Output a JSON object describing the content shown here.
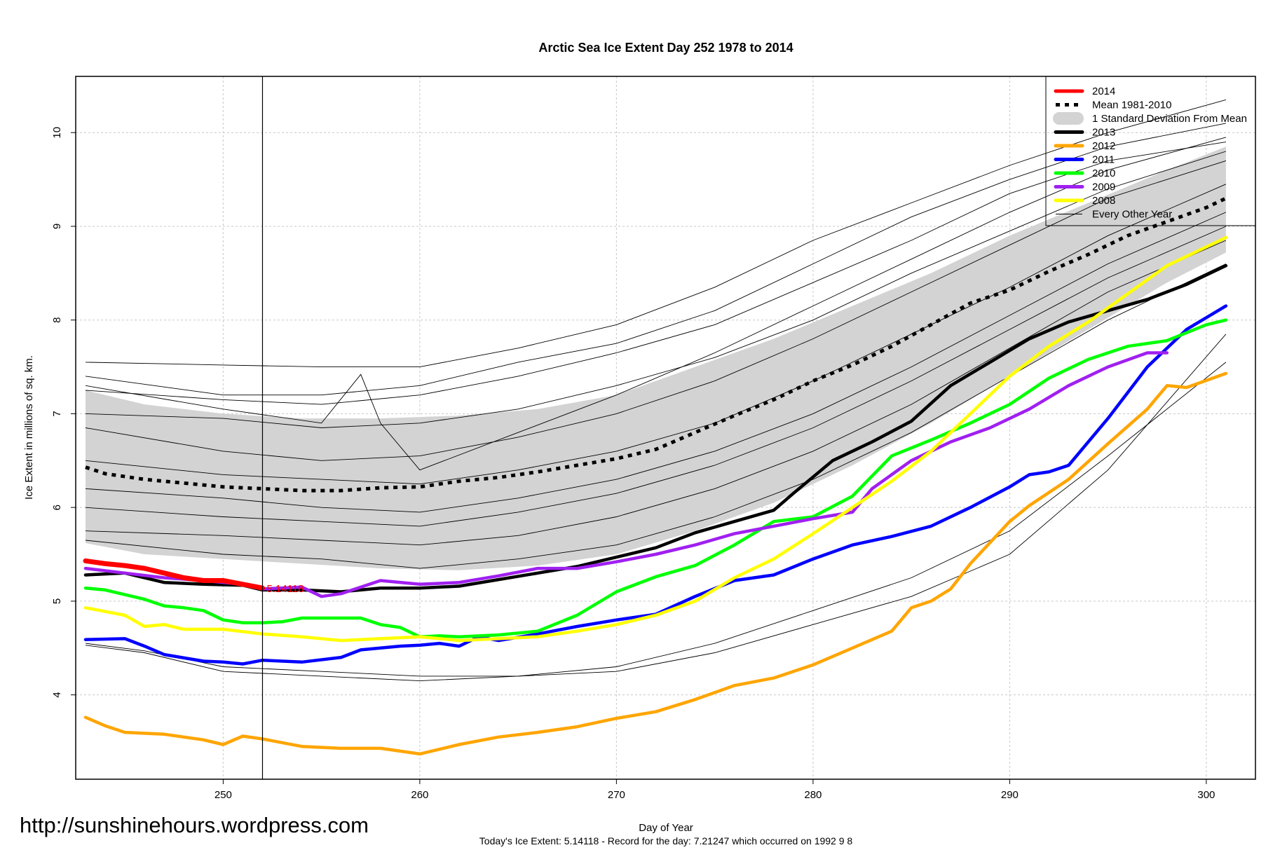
{
  "chart_data": {
    "type": "line",
    "title": "Arctic Sea Ice Extent Day 252 1978 to 2014",
    "xlabel": "Day of Year",
    "ylabel": "Ice Extent in millions of sq. km.",
    "xlim": [
      242.5,
      302.5
    ],
    "ylim": [
      3.1,
      10.6
    ],
    "x_ticks": [
      250,
      260,
      270,
      280,
      290,
      300
    ],
    "y_ticks": [
      4,
      5,
      6,
      7,
      8,
      9,
      10
    ],
    "grid": true,
    "legend_position": "top-right",
    "current_day": 252,
    "current_value_label": "5.14118",
    "footer": "Today's Ice Extent: 5.14118  - Record for the day: 7.21247 which occurred on 1992 9 8",
    "website": "http://sunshinehours.wordpress.com",
    "legend": [
      {
        "label": "2014",
        "color": "#ff0000",
        "style": "thick"
      },
      {
        "label": "Mean 1981-2010",
        "color": "#000000",
        "style": "dotted"
      },
      {
        "label": "1 Standard Deviation From Mean",
        "color": "#d3d3d3",
        "style": "band"
      },
      {
        "label": "2013",
        "color": "#000000",
        "style": "thick"
      },
      {
        "label": "2012",
        "color": "#ffa500",
        "style": "thick"
      },
      {
        "label": "2011",
        "color": "#0000ff",
        "style": "thick"
      },
      {
        "label": "2010",
        "color": "#00ff00",
        "style": "thick"
      },
      {
        "label": "2009",
        "color": "#a020f0",
        "style": "thick"
      },
      {
        "label": "2008",
        "color": "#ffff00",
        "style": "thick"
      },
      {
        "label": "Every Other Year",
        "color": "#000000",
        "style": "thin"
      }
    ],
    "band": {
      "x": [
        243,
        246,
        250,
        254,
        258,
        262,
        266,
        270,
        274,
        278,
        282,
        286,
        290,
        294,
        298,
        301
      ],
      "upper": [
        7.25,
        7.1,
        7.0,
        6.95,
        6.95,
        6.98,
        7.05,
        7.2,
        7.5,
        7.8,
        8.15,
        8.5,
        8.9,
        9.25,
        9.6,
        9.85
      ],
      "lower": [
        5.62,
        5.5,
        5.45,
        5.4,
        5.35,
        5.33,
        5.38,
        5.5,
        5.75,
        6.05,
        6.45,
        6.9,
        7.4,
        7.9,
        8.4,
        8.72
      ]
    },
    "series": [
      {
        "name": "Mean 1981-2010",
        "color": "#000000",
        "style": "dotted",
        "x": [
          243,
          244,
          246,
          248,
          250,
          252,
          254,
          256,
          258,
          260,
          262,
          264,
          266,
          268,
          270,
          272,
          274,
          276,
          278,
          280,
          282,
          284,
          286,
          288,
          290,
          292,
          294,
          296,
          298,
          300,
          301
        ],
        "y": [
          6.43,
          6.36,
          6.3,
          6.26,
          6.22,
          6.2,
          6.18,
          6.18,
          6.21,
          6.22,
          6.28,
          6.32,
          6.38,
          6.45,
          6.52,
          6.62,
          6.8,
          6.98,
          7.15,
          7.35,
          7.52,
          7.72,
          7.95,
          8.18,
          8.32,
          8.52,
          8.7,
          8.9,
          9.05,
          9.2,
          9.3
        ]
      },
      {
        "name": "2013",
        "color": "#000000",
        "style": "thick",
        "x": [
          243,
          245,
          247,
          249,
          251,
          252,
          254,
          256,
          258,
          260,
          262,
          264,
          266,
          268,
          270,
          272,
          274,
          276,
          278,
          279,
          281,
          283,
          285,
          287,
          289,
          291,
          293,
          295,
          297,
          299,
          301
        ],
        "y": [
          5.28,
          5.3,
          5.2,
          5.18,
          5.17,
          5.12,
          5.12,
          5.1,
          5.14,
          5.14,
          5.16,
          5.23,
          5.3,
          5.37,
          5.47,
          5.57,
          5.73,
          5.85,
          5.97,
          6.15,
          6.5,
          6.7,
          6.92,
          7.3,
          7.55,
          7.8,
          7.98,
          8.1,
          8.22,
          8.38,
          8.58
        ]
      },
      {
        "name": "2012",
        "color": "#ffa500",
        "style": "thick",
        "x": [
          243,
          244,
          245,
          247,
          249,
          250,
          251,
          252,
          254,
          256,
          258,
          260,
          262,
          264,
          266,
          268,
          270,
          272,
          274,
          276,
          278,
          280,
          282,
          284,
          285,
          286,
          287,
          288,
          290,
          291,
          293,
          295,
          297,
          298,
          299,
          301
        ],
        "y": [
          3.76,
          3.67,
          3.6,
          3.58,
          3.52,
          3.47,
          3.56,
          3.53,
          3.45,
          3.43,
          3.43,
          3.37,
          3.47,
          3.55,
          3.6,
          3.66,
          3.75,
          3.82,
          3.95,
          4.1,
          4.18,
          4.32,
          4.5,
          4.68,
          4.93,
          5.0,
          5.13,
          5.4,
          5.85,
          6.02,
          6.3,
          6.68,
          7.05,
          7.3,
          7.28,
          7.43
        ]
      },
      {
        "name": "2011",
        "color": "#0000ff",
        "style": "thick",
        "x": [
          243,
          245,
          246,
          247,
          249,
          250,
          251,
          252,
          254,
          256,
          257,
          259,
          260,
          261,
          262,
          263,
          264,
          266,
          268,
          270,
          272,
          274,
          276,
          278,
          280,
          282,
          284,
          286,
          288,
          290,
          291,
          292,
          293,
          295,
          297,
          299,
          301
        ],
        "y": [
          4.59,
          4.6,
          4.52,
          4.43,
          4.36,
          4.35,
          4.33,
          4.37,
          4.35,
          4.4,
          4.48,
          4.52,
          4.53,
          4.55,
          4.52,
          4.62,
          4.58,
          4.65,
          4.73,
          4.8,
          4.86,
          5.05,
          5.22,
          5.28,
          5.45,
          5.6,
          5.69,
          5.8,
          6.0,
          6.22,
          6.35,
          6.38,
          6.45,
          6.95,
          7.5,
          7.9,
          8.15
        ]
      },
      {
        "name": "2010",
        "color": "#00ff00",
        "style": "thick",
        "x": [
          243,
          244,
          246,
          247,
          248,
          249,
          250,
          251,
          252,
          253,
          254,
          256,
          257,
          258,
          259,
          260,
          261,
          262,
          264,
          266,
          268,
          270,
          272,
          274,
          276,
          278,
          280,
          282,
          284,
          286,
          288,
          290,
          292,
          294,
          296,
          298,
          300,
          301
        ],
        "y": [
          5.14,
          5.12,
          5.02,
          4.95,
          4.93,
          4.9,
          4.8,
          4.77,
          4.77,
          4.78,
          4.82,
          4.82,
          4.82,
          4.75,
          4.72,
          4.62,
          4.63,
          4.62,
          4.64,
          4.68,
          4.85,
          5.1,
          5.26,
          5.38,
          5.6,
          5.85,
          5.9,
          6.12,
          6.55,
          6.72,
          6.9,
          7.1,
          7.38,
          7.58,
          7.72,
          7.78,
          7.95,
          8.0
        ]
      },
      {
        "name": "2009",
        "color": "#a020f0",
        "style": "thick",
        "x": [
          243,
          245,
          247,
          249,
          251,
          252,
          254,
          255,
          256,
          258,
          260,
          262,
          264,
          266,
          268,
          270,
          272,
          274,
          276,
          278,
          280,
          282,
          283,
          285,
          287,
          289,
          291,
          293,
          295,
          297,
          298
        ],
        "y": [
          5.35,
          5.3,
          5.25,
          5.22,
          5.18,
          5.13,
          5.15,
          5.05,
          5.08,
          5.22,
          5.18,
          5.2,
          5.27,
          5.35,
          5.35,
          5.42,
          5.5,
          5.6,
          5.72,
          5.8,
          5.88,
          5.95,
          6.2,
          6.5,
          6.7,
          6.85,
          7.05,
          7.3,
          7.5,
          7.65,
          7.65
        ]
      },
      {
        "name": "2008",
        "color": "#ffff00",
        "style": "thick",
        "x": [
          243,
          245,
          246,
          247,
          248,
          250,
          252,
          254,
          256,
          258,
          260,
          262,
          264,
          266,
          268,
          270,
          272,
          274,
          276,
          278,
          280,
          282,
          284,
          286,
          288,
          290,
          292,
          294,
          296,
          298,
          300,
          301
        ],
        "y": [
          4.93,
          4.85,
          4.73,
          4.75,
          4.7,
          4.7,
          4.65,
          4.62,
          4.58,
          4.6,
          4.62,
          4.58,
          4.6,
          4.62,
          4.68,
          4.75,
          4.85,
          5.0,
          5.25,
          5.45,
          5.72,
          6.0,
          6.28,
          6.6,
          7.0,
          7.4,
          7.72,
          7.98,
          8.28,
          8.58,
          8.78,
          8.88
        ]
      },
      {
        "name": "2014",
        "color": "#ff0000",
        "style": "thick",
        "x": [
          243,
          244,
          245,
          246,
          247,
          248,
          249,
          250,
          251,
          252
        ],
        "y": [
          5.43,
          5.4,
          5.38,
          5.35,
          5.3,
          5.25,
          5.22,
          5.22,
          5.18,
          5.14
        ]
      }
    ],
    "thin_lines": [
      {
        "x": [
          243,
          250,
          255,
          260,
          265,
          270,
          275,
          280,
          285,
          290,
          295,
          301
        ],
        "y": [
          7.55,
          7.52,
          7.5,
          7.5,
          7.7,
          7.95,
          8.35,
          8.85,
          9.25,
          9.65,
          10.0,
          10.35
        ]
      },
      {
        "x": [
          243,
          250,
          255,
          260,
          265,
          270,
          275,
          280,
          285,
          290,
          295,
          301
        ],
        "y": [
          7.4,
          7.2,
          7.2,
          7.3,
          7.55,
          7.75,
          8.1,
          8.6,
          9.1,
          9.5,
          9.85,
          10.1
        ]
      },
      {
        "x": [
          243,
          250,
          255,
          260,
          265,
          270,
          275,
          280,
          285,
          290,
          295,
          301
        ],
        "y": [
          7.25,
          7.15,
          7.1,
          7.2,
          7.4,
          7.65,
          7.95,
          8.4,
          8.85,
          9.35,
          9.7,
          9.9
        ]
      },
      {
        "x": [
          243,
          250,
          255,
          257,
          258,
          260,
          265,
          270,
          275,
          280,
          285,
          290,
          295,
          301
        ],
        "y": [
          7.3,
          7.05,
          6.9,
          7.42,
          6.9,
          6.4,
          6.8,
          7.2,
          7.65,
          8.15,
          8.65,
          9.15,
          9.6,
          9.95
        ]
      },
      {
        "x": [
          243,
          250,
          255,
          260,
          265,
          270,
          275,
          280,
          285,
          290,
          295,
          301
        ],
        "y": [
          7.0,
          6.95,
          6.85,
          6.9,
          7.05,
          7.3,
          7.6,
          8.0,
          8.5,
          8.95,
          9.4,
          9.8
        ]
      },
      {
        "x": [
          243,
          250,
          255,
          260,
          265,
          270,
          275,
          280,
          285,
          290,
          295,
          301
        ],
        "y": [
          6.85,
          6.6,
          6.5,
          6.55,
          6.75,
          7.0,
          7.35,
          7.8,
          8.3,
          8.8,
          9.3,
          9.7
        ]
      },
      {
        "x": [
          243,
          250,
          255,
          260,
          265,
          270,
          275,
          280,
          285,
          290,
          295,
          301
        ],
        "y": [
          6.5,
          6.35,
          6.3,
          6.25,
          6.4,
          6.6,
          6.9,
          7.35,
          7.85,
          8.35,
          8.9,
          9.45
        ]
      },
      {
        "x": [
          243,
          250,
          255,
          260,
          265,
          270,
          275,
          280,
          285,
          290,
          295,
          301
        ],
        "y": [
          6.2,
          6.1,
          6.0,
          5.95,
          6.1,
          6.3,
          6.6,
          7.0,
          7.5,
          8.05,
          8.6,
          9.15
        ]
      },
      {
        "x": [
          243,
          250,
          255,
          260,
          265,
          270,
          275,
          280,
          285,
          290,
          295,
          301
        ],
        "y": [
          6.0,
          5.9,
          5.85,
          5.8,
          5.95,
          6.15,
          6.45,
          6.85,
          7.35,
          7.9,
          8.45,
          9.0
        ]
      },
      {
        "x": [
          243,
          250,
          255,
          260,
          265,
          270,
          275,
          280,
          285,
          290,
          295,
          301
        ],
        "y": [
          5.75,
          5.7,
          5.65,
          5.6,
          5.7,
          5.9,
          6.2,
          6.6,
          7.1,
          7.7,
          8.3,
          8.85
        ]
      },
      {
        "x": [
          243,
          250,
          255,
          260,
          265,
          270,
          275,
          280,
          285,
          290,
          295,
          301
        ],
        "y": [
          5.65,
          5.5,
          5.45,
          5.35,
          5.45,
          5.6,
          5.9,
          6.3,
          6.8,
          7.4,
          8.0,
          8.6
        ]
      },
      {
        "x": [
          243,
          246,
          250,
          255,
          260,
          265,
          270,
          275,
          280,
          285,
          290,
          295,
          301
        ],
        "y": [
          4.55,
          4.47,
          4.3,
          4.25,
          4.2,
          4.2,
          4.3,
          4.55,
          4.9,
          5.25,
          5.75,
          6.55,
          7.55
        ]
      },
      {
        "x": [
          243,
          246,
          250,
          255,
          260,
          265,
          270,
          275,
          280,
          285,
          290,
          295,
          301
        ],
        "y": [
          4.53,
          4.45,
          4.25,
          4.2,
          4.15,
          4.2,
          4.25,
          4.45,
          4.75,
          5.05,
          5.5,
          6.4,
          7.85
        ]
      }
    ]
  }
}
